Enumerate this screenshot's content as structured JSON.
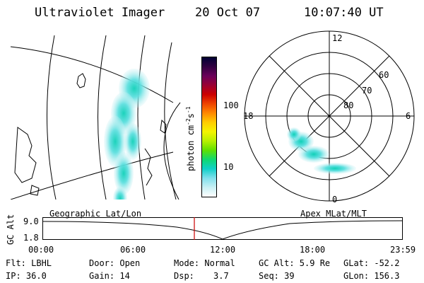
{
  "header": {
    "instrument": "Ultraviolet Imager",
    "date": "20 Oct 07",
    "time": "10:07:40 UT"
  },
  "colorbar": {
    "label_main": "photon cm",
    "label_exp1": "-2",
    "label_mid": "s",
    "label_exp2": "-1",
    "ticks": [
      "100",
      "10"
    ],
    "colors": [
      "#000033",
      "#300040",
      "#6a005a",
      "#9a0033",
      "#cc0000",
      "#ee4400",
      "#ff8800",
      "#ffcc00",
      "#f4f400",
      "#b8f000",
      "#60e000",
      "#10d870",
      "#10d0c8",
      "#80e0ec",
      "#c8f0f4",
      "#ffffff"
    ]
  },
  "geo_panel": {
    "label": "Geographic Lat/Lon"
  },
  "polar_panel": {
    "label": "Apex MLat/MLT",
    "mlt_labels": {
      "top": "12",
      "left": "18",
      "right": "6",
      "bottom": "0"
    },
    "mlat_labels": [
      "60",
      "70",
      "80"
    ]
  },
  "altitude_strip": {
    "axis_label": "GC Alt",
    "y_ticks": [
      "9.0",
      "1.8"
    ],
    "x_ticks": [
      "00:00",
      "06:00",
      "12:00",
      "18:00",
      "23:59"
    ],
    "marker_time": "10:07:40"
  },
  "footer": {
    "row1": [
      "Flt: LBHL",
      "Door: Open",
      "Mode: Normal",
      "GC Alt: 5.9 Re",
      "GLat: -52.2"
    ],
    "row2": [
      "IP: 36.0",
      "Gain: 14",
      "Dsp:",
      "3.7",
      "Seq: 39",
      "GLon: 156.3"
    ]
  },
  "colors": {
    "marker": "#cc0000",
    "aurora_core": "#10d0b8",
    "aurora_mid": "#60e0e0",
    "aurora_edge": "#c8f0f4"
  }
}
